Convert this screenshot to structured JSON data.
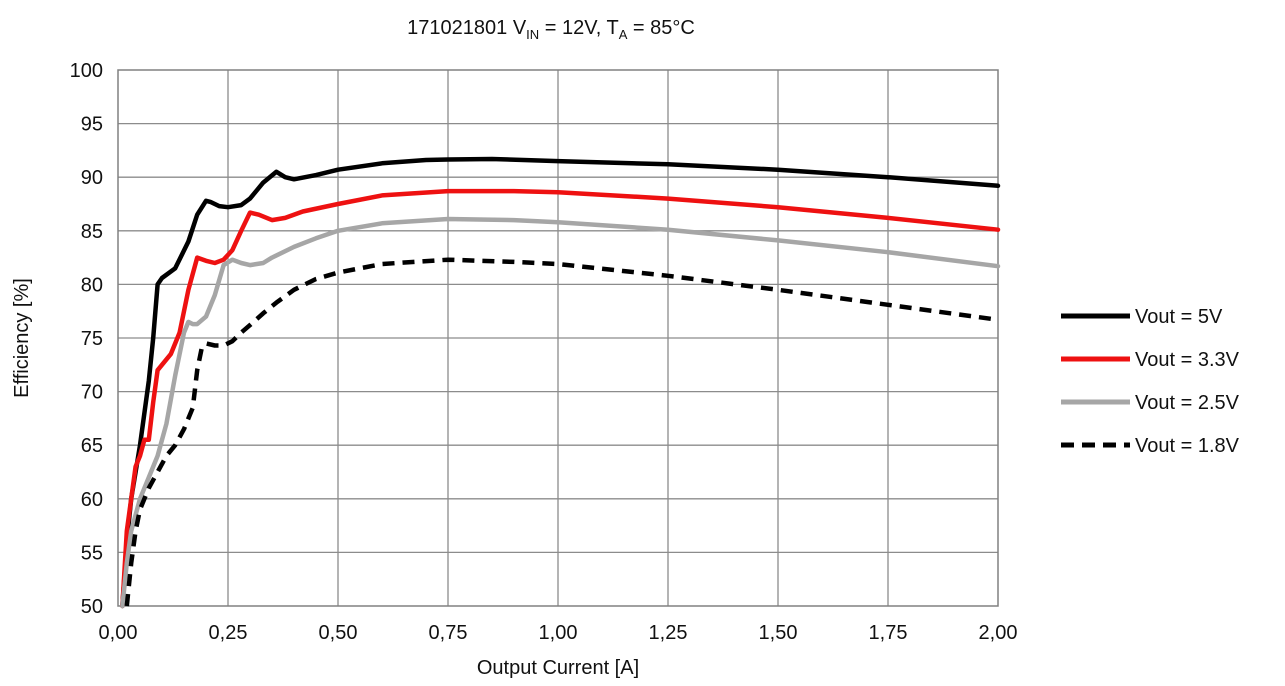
{
  "chart_data": {
    "type": "line",
    "title": {
      "prefix": "171021801  V",
      "sub1": "IN",
      "mid": " = 12V, T",
      "sub2": "A",
      "suffix": " = 85°C"
    },
    "xlabel": "Output Current [A]",
    "ylabel": "Efficiency [%]",
    "xlim": [
      0,
      2
    ],
    "ylim": [
      50,
      100
    ],
    "x_ticks": [
      0,
      0.25,
      0.5,
      0.75,
      1.0,
      1.25,
      1.5,
      1.75,
      2.0
    ],
    "x_tick_labels": [
      "0,00",
      "0,25",
      "0,50",
      "0,75",
      "1,00",
      "1,25",
      "1,50",
      "1,75",
      "2,00"
    ],
    "y_ticks": [
      50,
      55,
      60,
      65,
      70,
      75,
      80,
      85,
      90,
      95,
      100
    ],
    "y_tick_labels": [
      "50",
      "55",
      "60",
      "65",
      "70",
      "75",
      "80",
      "85",
      "90",
      "95",
      "100"
    ],
    "grid": true,
    "legend_position": "right",
    "series": [
      {
        "name": "Vout = 5V",
        "color": "#000000",
        "dash": "solid",
        "x": [
          0.01,
          0.02,
          0.03,
          0.05,
          0.07,
          0.08,
          0.09,
          0.1,
          0.13,
          0.16,
          0.18,
          0.2,
          0.21,
          0.23,
          0.25,
          0.28,
          0.3,
          0.33,
          0.36,
          0.38,
          0.4,
          0.45,
          0.5,
          0.6,
          0.7,
          0.75,
          0.85,
          1.0,
          1.25,
          1.5,
          1.75,
          2.0
        ],
        "y": [
          50,
          56,
          60,
          65,
          71,
          75,
          80,
          80.6,
          81.5,
          84,
          86.5,
          87.8,
          87.7,
          87.3,
          87.2,
          87.4,
          88,
          89.5,
          90.5,
          90,
          89.8,
          90.2,
          90.7,
          91.3,
          91.6,
          91.65,
          91.7,
          91.5,
          91.2,
          90.7,
          90.0,
          89.2
        ]
      },
      {
        "name": "Vout = 3.3V",
        "color": "#ee1111",
        "dash": "solid",
        "x": [
          0.01,
          0.02,
          0.03,
          0.04,
          0.05,
          0.06,
          0.07,
          0.08,
          0.09,
          0.1,
          0.12,
          0.14,
          0.16,
          0.18,
          0.2,
          0.22,
          0.24,
          0.26,
          0.28,
          0.3,
          0.32,
          0.35,
          0.38,
          0.42,
          0.5,
          0.6,
          0.75,
          0.9,
          1.0,
          1.25,
          1.5,
          1.75,
          2.0
        ],
        "y": [
          50,
          57,
          60,
          63,
          64,
          65.5,
          65.5,
          69,
          72,
          72.5,
          73.5,
          75.5,
          79.5,
          82.5,
          82.2,
          82,
          82.3,
          83.2,
          85,
          86.7,
          86.5,
          86,
          86.2,
          86.8,
          87.5,
          88.3,
          88.7,
          88.7,
          88.6,
          88.0,
          87.2,
          86.2,
          85.1
        ]
      },
      {
        "name": "Vout = 2.5V",
        "color": "#a6a6a6",
        "dash": "solid",
        "x": [
          0.01,
          0.02,
          0.03,
          0.05,
          0.07,
          0.09,
          0.11,
          0.13,
          0.15,
          0.16,
          0.17,
          0.18,
          0.2,
          0.22,
          0.24,
          0.26,
          0.28,
          0.3,
          0.33,
          0.35,
          0.4,
          0.45,
          0.5,
          0.6,
          0.75,
          0.9,
          1.0,
          1.25,
          1.5,
          1.75,
          2.0
        ],
        "y": [
          50,
          54,
          57,
          60,
          62,
          64,
          67,
          71.5,
          75.5,
          76.5,
          76.3,
          76.3,
          77,
          79,
          81.8,
          82.3,
          82,
          81.8,
          82,
          82.5,
          83.5,
          84.3,
          85,
          85.7,
          86.1,
          86.0,
          85.8,
          85.1,
          84.1,
          83.0,
          81.7
        ]
      },
      {
        "name": "Vout = 1.8V",
        "color": "#000000",
        "dash": "dashed",
        "x": [
          0.02,
          0.03,
          0.04,
          0.05,
          0.07,
          0.09,
          0.11,
          0.13,
          0.15,
          0.17,
          0.18,
          0.19,
          0.2,
          0.22,
          0.24,
          0.26,
          0.28,
          0.3,
          0.33,
          0.36,
          0.4,
          0.45,
          0.5,
          0.6,
          0.75,
          0.9,
          1.0,
          1.25,
          1.5,
          1.75,
          2.0
        ],
        "y": [
          50,
          54,
          57,
          59,
          61,
          62.5,
          64,
          65,
          66.5,
          68.5,
          72,
          74,
          74.5,
          74.3,
          74.3,
          74.7,
          75.5,
          76.2,
          77.3,
          78.3,
          79.5,
          80.5,
          81.1,
          81.9,
          82.3,
          82.1,
          81.9,
          80.8,
          79.5,
          78.1,
          76.7
        ]
      }
    ]
  }
}
